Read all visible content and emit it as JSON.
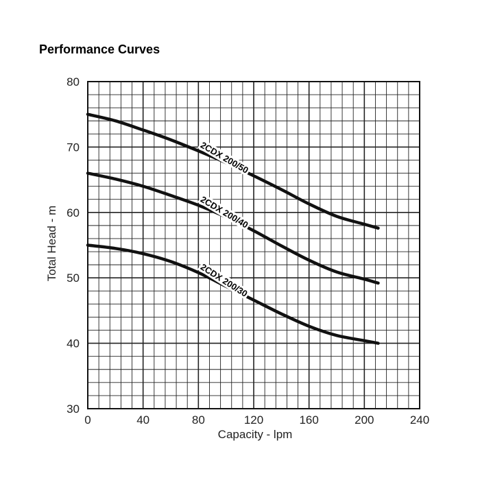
{
  "chart_data": {
    "type": "line",
    "title": "Performance Curves",
    "xlabel": "Capacity - lpm",
    "ylabel": "Total Head - m",
    "xlim": [
      0,
      240
    ],
    "ylim": [
      30,
      80
    ],
    "x_ticks": [
      "0",
      "40",
      "80",
      "120",
      "160",
      "200",
      "240"
    ],
    "y_ticks": [
      "30",
      "40",
      "50",
      "60",
      "70",
      "80"
    ],
    "grid": true,
    "series": [
      {
        "name": "2CDX 200/50",
        "x": [
          0,
          20,
          40,
          60,
          80,
          100,
          120,
          140,
          160,
          180,
          200,
          210
        ],
        "y": [
          75,
          74,
          72.6,
          71.1,
          69.4,
          67.6,
          65.6,
          63.5,
          61.3,
          59.4,
          58.2,
          57.6
        ]
      },
      {
        "name": "2CDX 200/40",
        "x": [
          0,
          20,
          40,
          60,
          80,
          100,
          120,
          140,
          160,
          180,
          200,
          210
        ],
        "y": [
          66,
          65.1,
          64,
          62.6,
          61.1,
          59.3,
          57.2,
          54.9,
          52.7,
          50.9,
          49.8,
          49.2
        ]
      },
      {
        "name": "2CDX 200/30",
        "x": [
          0,
          20,
          40,
          60,
          80,
          100,
          120,
          140,
          160,
          180,
          200,
          210
        ],
        "y": [
          55,
          54.5,
          53.7,
          52.5,
          50.8,
          48.7,
          46.6,
          44.5,
          42.6,
          41.2,
          40.4,
          40
        ]
      }
    ]
  }
}
